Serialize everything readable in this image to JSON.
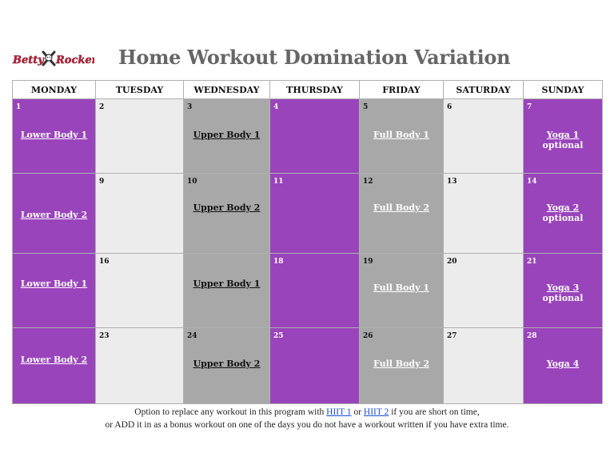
{
  "header": {
    "logo_text": "Betty Rocker",
    "title": "Home Workout Domination Variation"
  },
  "days": [
    "MONDAY",
    "TUESDAY",
    "WEDNESDAY",
    "THURSDAY",
    "FRIDAY",
    "SATURDAY",
    "SUNDAY"
  ],
  "weeks": [
    {
      "mon": {
        "num": "1",
        "workout": "Lower Body 1"
      },
      "tue": {
        "num": "2"
      },
      "wed": {
        "num": "3",
        "workout": "Upper Body 1"
      },
      "thu": {
        "num": "4"
      },
      "fri": {
        "num": "5",
        "workout": "Full Body 1"
      },
      "sat": {
        "num": "6"
      },
      "sun": {
        "num": "7",
        "workout": "Yoga 1",
        "note": "optional"
      }
    },
    {
      "mon": {
        "num": "",
        "workout": "Lower Body 2"
      },
      "tue": {
        "num": "9"
      },
      "wed": {
        "num": "10",
        "workout": "Upper Body 2"
      },
      "thu": {
        "num": "11"
      },
      "fri": {
        "num": "12",
        "workout": "Full Body 2"
      },
      "sat": {
        "num": "13"
      },
      "sun": {
        "num": "14",
        "workout": "Yoga 2",
        "note": "optional"
      }
    },
    {
      "mon": {
        "num": "",
        "workout": "Lower Body 1"
      },
      "tue": {
        "num": "16"
      },
      "wed": {
        "num": "",
        "workout": "Upper Body 1"
      },
      "thu": {
        "num": "18"
      },
      "fri": {
        "num": "19",
        "workout": "Full Body 1"
      },
      "sat": {
        "num": "20"
      },
      "sun": {
        "num": "21",
        "workout": "Yoga 3",
        "note": "optional"
      }
    },
    {
      "mon": {
        "num": "",
        "workout": "Lower Body 2"
      },
      "tue": {
        "num": "23"
      },
      "wed": {
        "num": "24",
        "workout": "Upper Body 2"
      },
      "thu": {
        "num": "25"
      },
      "fri": {
        "num": "26",
        "workout": "Full Body 2"
      },
      "sat": {
        "num": "27"
      },
      "sun": {
        "num": "28",
        "workout": "Yoga 4"
      }
    }
  ],
  "footer": {
    "line1_a": "Option to replace any workout in this program with ",
    "hiit1": "HIIT 1",
    "line1_or": " or ",
    "hiit2": "HIIT 2",
    "line1_b": " if you are short on time,",
    "line2": "or ADD it in as a bonus workout on one of the days you do not have a workout written if you have extra time."
  },
  "colors": {
    "purple": "#9944bb",
    "gray": "#a8a8a8",
    "light": "#ececec",
    "link_blue": "#1a4fd6",
    "title_gray": "#666666"
  }
}
